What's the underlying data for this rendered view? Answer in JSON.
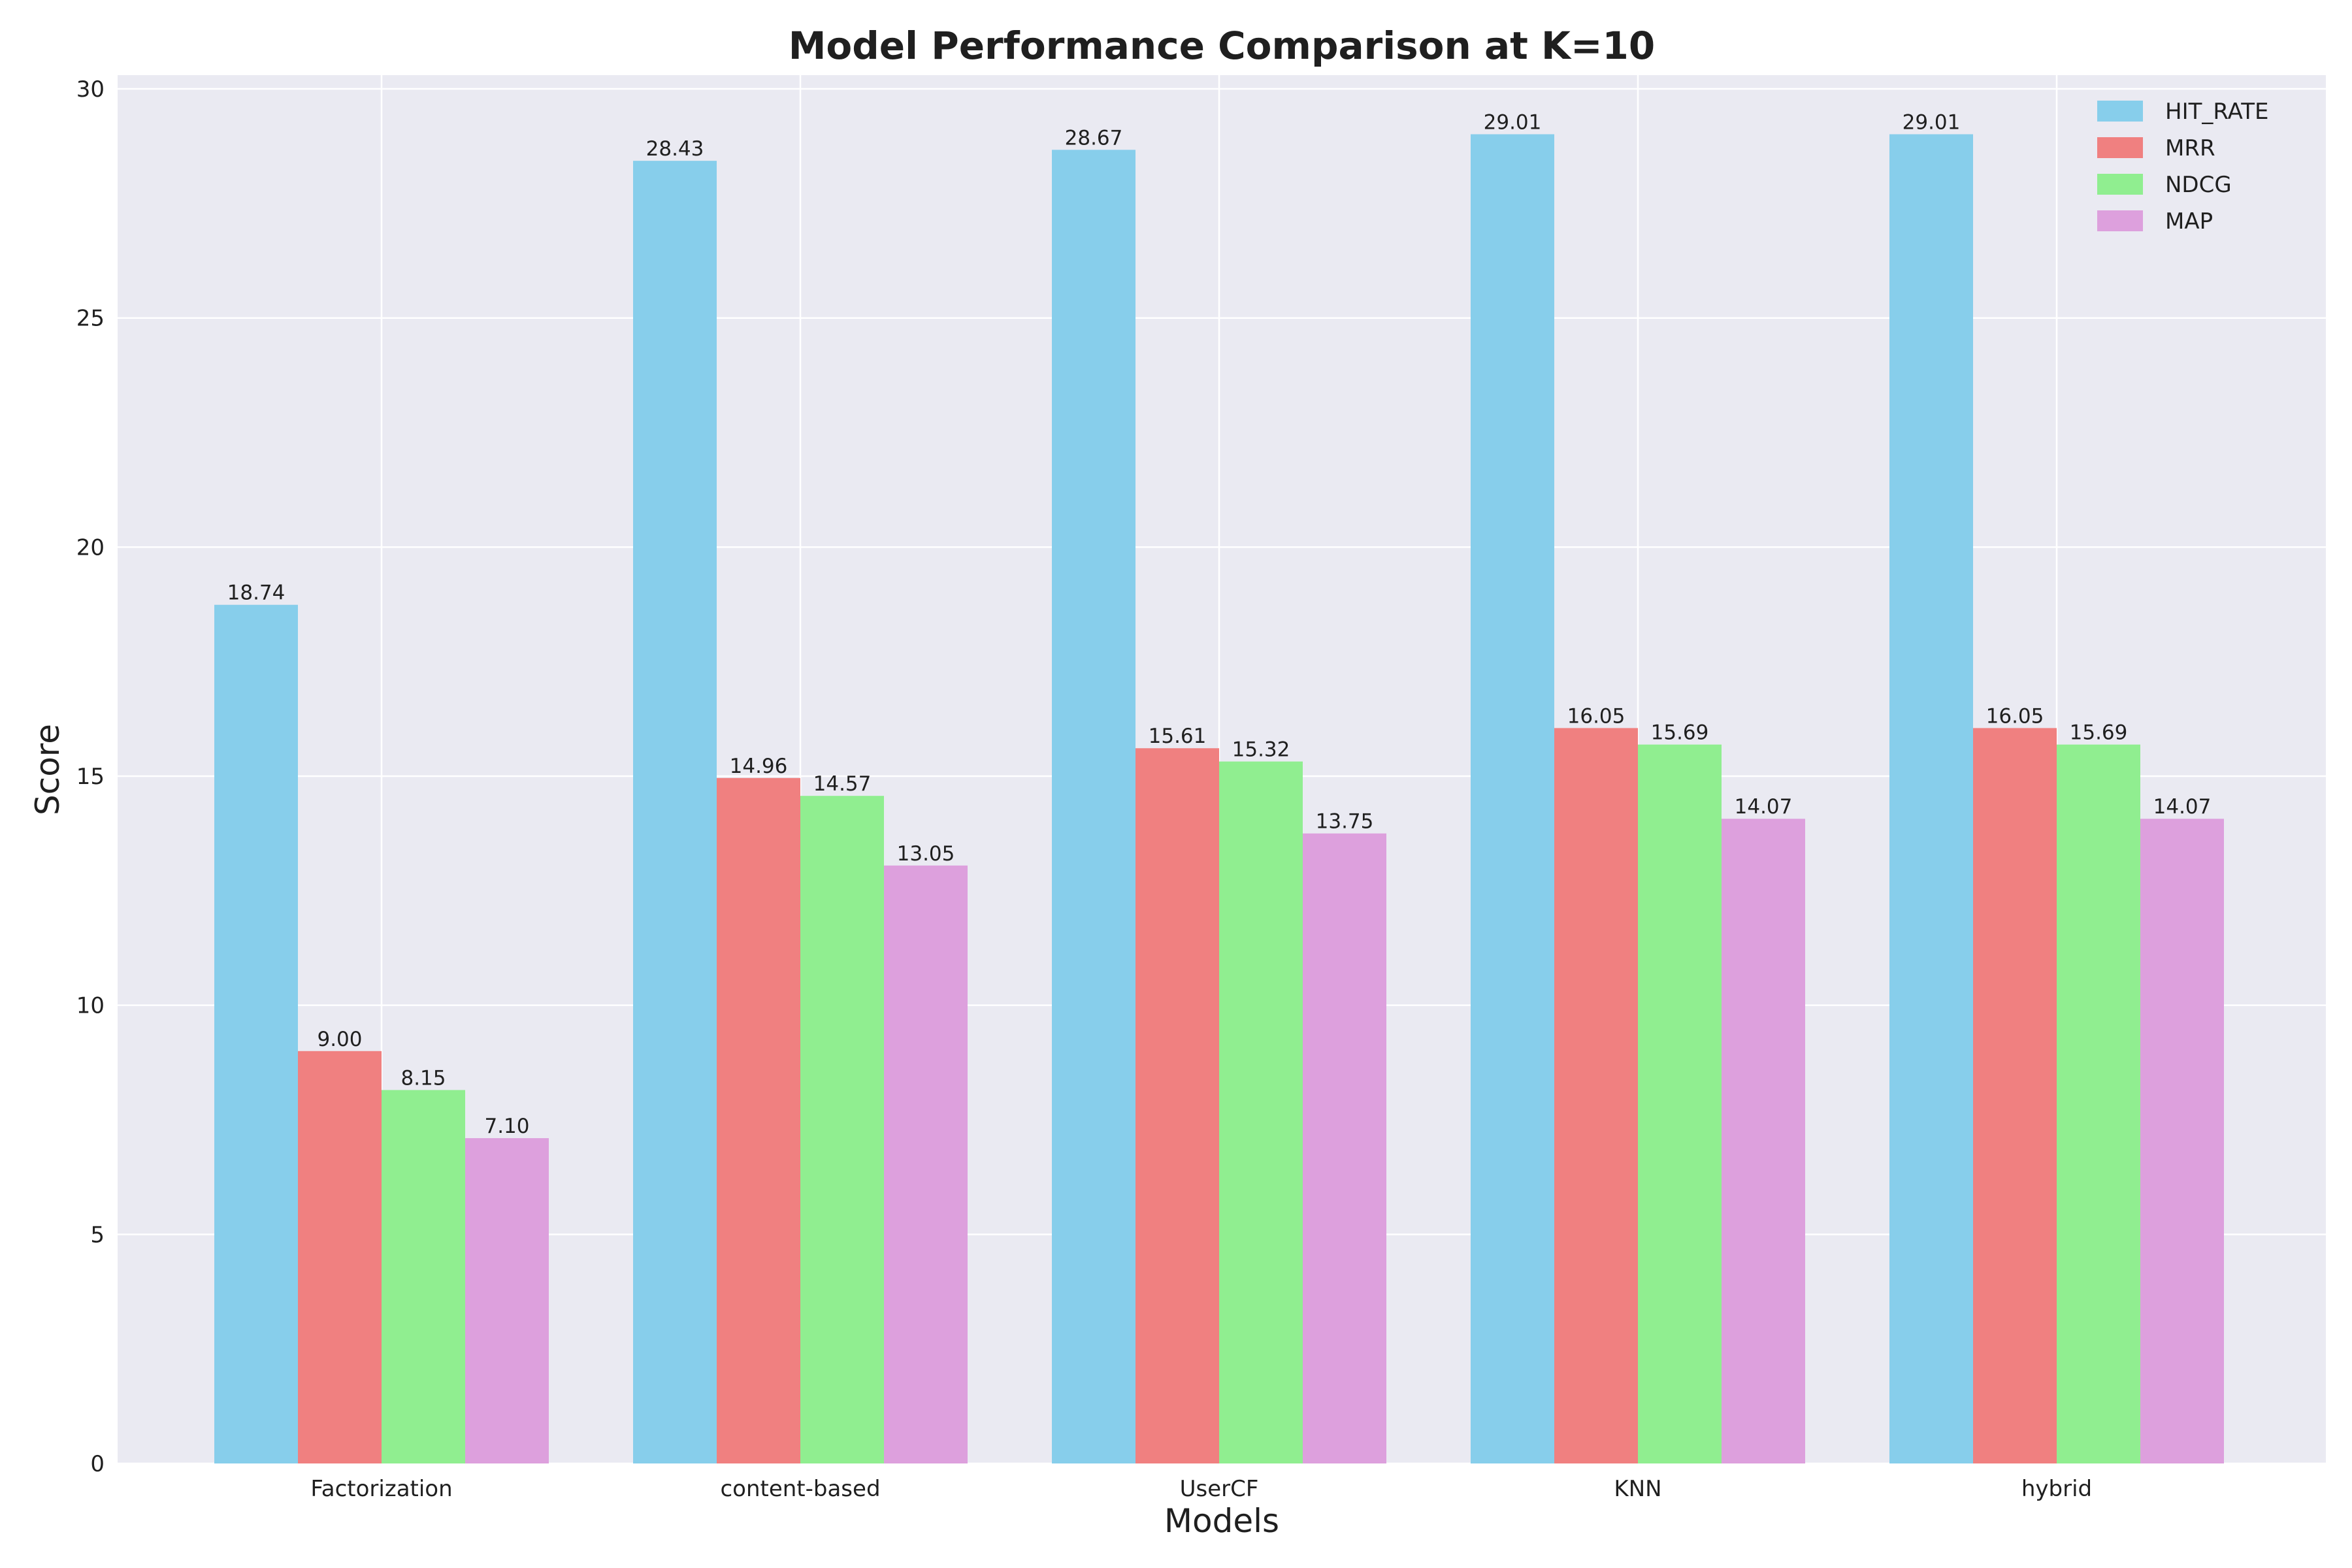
{
  "chart_data": {
    "type": "bar",
    "title": "Model Performance Comparison at K=10",
    "xlabel": "Models",
    "ylabel": "Score",
    "ylim": [
      0,
      30.3
    ],
    "yticks": [
      0,
      5,
      10,
      15,
      20,
      25,
      30
    ],
    "categories": [
      "Factorization",
      "content-based",
      "UserCF",
      "KNN",
      "hybrid"
    ],
    "series": [
      {
        "name": "HIT_RATE",
        "color": "#87CEEB",
        "values": [
          18.74,
          28.43,
          28.67,
          29.01,
          29.01
        ]
      },
      {
        "name": "MRR",
        "color": "#F08080",
        "values": [
          9.0,
          14.96,
          15.61,
          16.05,
          16.05
        ]
      },
      {
        "name": "NDCG",
        "color": "#90EE90",
        "values": [
          8.15,
          14.57,
          15.32,
          15.69,
          15.69
        ]
      },
      {
        "name": "MAP",
        "color": "#DDA0DD",
        "values": [
          7.1,
          13.05,
          13.75,
          14.07,
          14.07
        ]
      }
    ],
    "grid": true,
    "legend_position": "top-right",
    "plot_background": "#EAEAF2",
    "grid_color": "#FFFFFF"
  }
}
